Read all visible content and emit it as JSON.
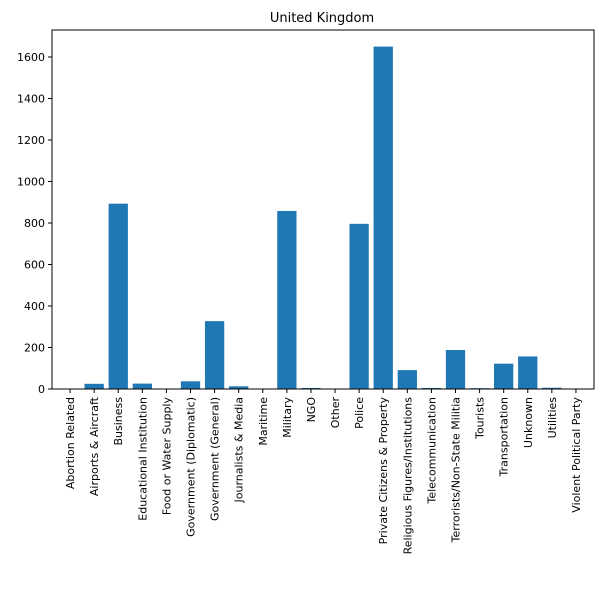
{
  "chart_data": {
    "type": "bar",
    "title": "United Kingdom",
    "xlabel": "",
    "ylabel": "",
    "categories": [
      "Abortion Related",
      "Airports & Aircraft",
      "Business",
      "Educational Institution",
      "Food or Water Supply",
      "Government (Diplomatic)",
      "Government (General)",
      "Journalists & Media",
      "Maritime",
      "Military",
      "NGO",
      "Other",
      "Police",
      "Private Citizens & Property",
      "Religious Figures/Institutions",
      "Telecommunication",
      "Terrorists/Non-State Militia",
      "Tourists",
      "Transportation",
      "Unknown",
      "Utilities",
      "Violent Political Party"
    ],
    "values": [
      0,
      25,
      893,
      26,
      1,
      37,
      327,
      13,
      1,
      858,
      5,
      2,
      796,
      1650,
      91,
      5,
      188,
      4,
      122,
      157,
      6,
      2
    ],
    "ylim": [
      0,
      1730
    ],
    "yticks": [
      0,
      200,
      400,
      600,
      800,
      1000,
      1200,
      1400,
      1600
    ],
    "grid": false,
    "colors": {
      "bar": "#1f77b4",
      "axis": "#000000"
    }
  }
}
